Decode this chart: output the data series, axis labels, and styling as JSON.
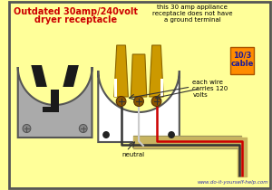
{
  "bg_color": "#FFFF99",
  "title_line1": "Outdated 30amp/240volt",
  "title_line2": "dryer receptacle",
  "title_color": "#CC0000",
  "note_text": "this 30 amp appliance\nreceptacle does not have\na ground terminal",
  "label_neutral": "neutral",
  "label_cable": "10/3\ncable",
  "label_cable_bg": "#FF8C00",
  "label_wire": "each wire\ncarries 120\nvolts",
  "website": "www.do-it-yourself-help.com",
  "wire_red": "#CC0000",
  "wire_black": "#333333",
  "wire_white": "#BBBBBB",
  "wire_tan": "#C8B460",
  "prong_color": "#CC9900",
  "prong_dark": "#8B6600",
  "outlet_gray": "#AAAAAA",
  "outlet_white": "#FFFFFF",
  "slot_black": "#1A1A1A",
  "screw_brown": "#8B5500"
}
